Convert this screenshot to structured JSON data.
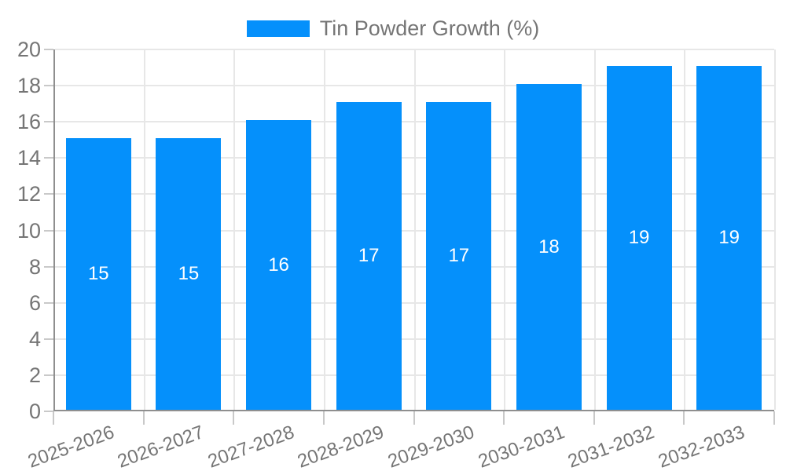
{
  "chart_data": {
    "type": "bar",
    "title": "",
    "legend_label": "Tin Powder Growth (%)",
    "legend_position": "top-center",
    "categories": [
      "2025-2026",
      "2026-2027",
      "2027-2028",
      "2028-2029",
      "2029-2030",
      "2030-2031",
      "2031-2032",
      "2032-2033"
    ],
    "values": [
      15,
      15,
      16,
      17,
      17,
      18,
      19,
      19
    ],
    "xlabel": "",
    "ylabel": "",
    "ylim": [
      0,
      20
    ],
    "yticks": [
      0,
      2,
      4,
      6,
      8,
      10,
      12,
      14,
      16,
      18,
      20
    ],
    "grid": true,
    "bar_value_labels_shown": true,
    "x_label_rotation_deg": -20,
    "colors": {
      "bar": "#0590fb",
      "bar_value_text": "#ffffff",
      "axis_text": "#757575",
      "axis_line": "#8f8f8f",
      "gridline": "#e7e7e7",
      "tick": "#c9c9c9",
      "background": "#ffffff"
    }
  }
}
